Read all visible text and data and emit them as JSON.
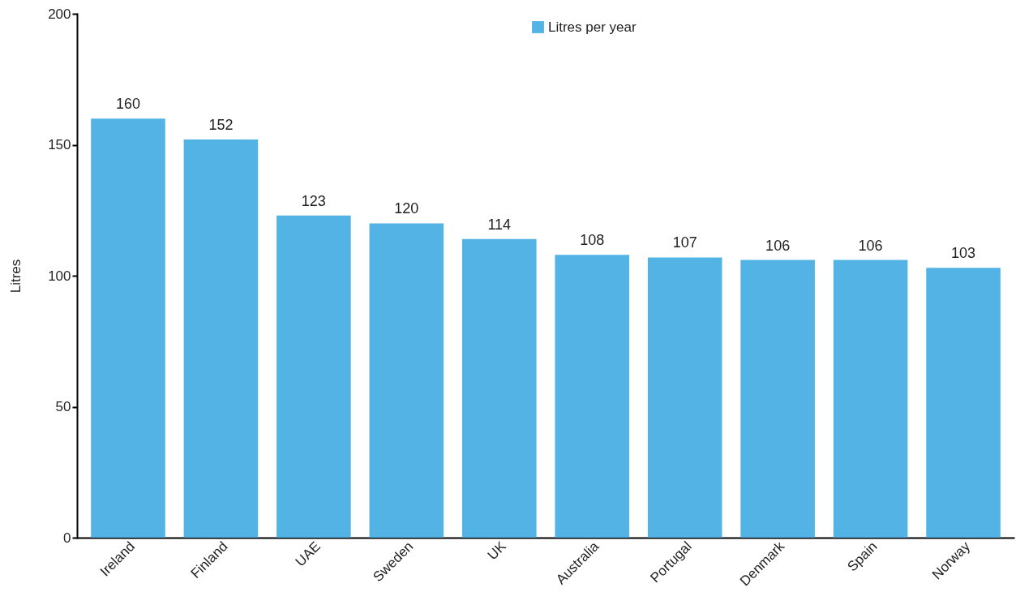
{
  "chart_data": {
    "type": "bar",
    "ylabel": "Litres",
    "categories": [
      "Ireland",
      "Finland",
      "UAE",
      "Sweden",
      "UK",
      "Australia",
      "Portugal",
      "Denmark",
      "Spain",
      "Norway"
    ],
    "series": [
      {
        "name": "Litres per year",
        "color": "#52b3e4",
        "values": [
          160,
          152,
          123,
          120,
          114,
          108,
          107,
          106,
          106,
          103
        ]
      }
    ],
    "ylim": [
      0,
      200
    ],
    "yticks": [
      0,
      50,
      100,
      150,
      200
    ],
    "grid": false,
    "legend": "top",
    "data_labels": true
  }
}
